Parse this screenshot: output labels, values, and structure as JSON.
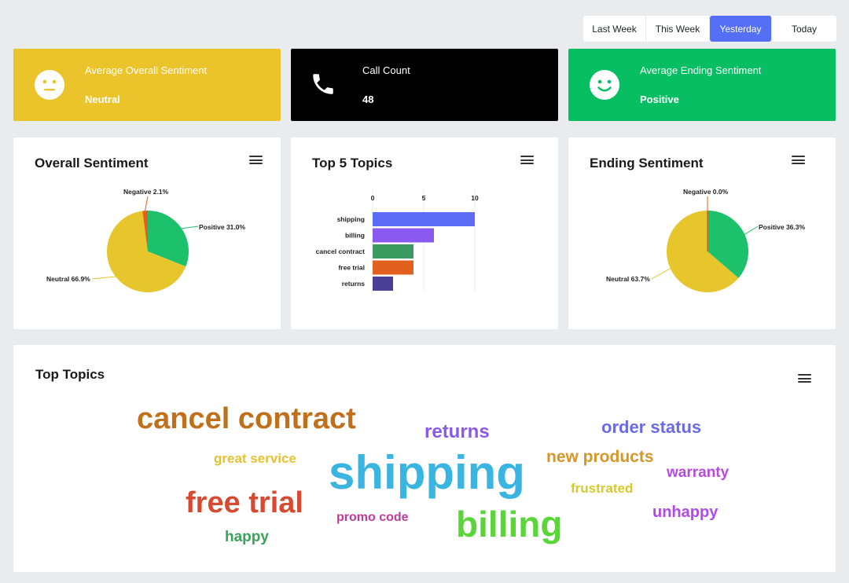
{
  "filters": [
    {
      "label": "Last Week",
      "active": false
    },
    {
      "label": "This Week",
      "active": false
    },
    {
      "label": "Yesterday",
      "active": true
    },
    {
      "label": "Today",
      "active": false
    }
  ],
  "kpis": {
    "overall": {
      "title": "Average Overall Sentiment",
      "value": "Neutral",
      "color": "#ebc42b",
      "icon": "neutral-face-icon"
    },
    "calls": {
      "title": "Call Count",
      "value": "48",
      "color": "#000000",
      "icon": "phone-icon"
    },
    "ending": {
      "title": "Average Ending Sentiment",
      "value": "Positive",
      "color": "#07bf62",
      "icon": "smiley-face-icon"
    }
  },
  "overall_sentiment": {
    "title": "Overall Sentiment",
    "labels": {
      "negative": "Negative 2.1%",
      "positive": "Positive 31.0%",
      "neutral": "Neutral 66.9%"
    }
  },
  "top5": {
    "title": "Top 5 Topics",
    "ticks": [
      "0",
      "5",
      "10"
    ]
  },
  "ending_sentiment": {
    "title": "Ending Sentiment",
    "labels": {
      "negative": "Negative 0.0%",
      "positive": "Positive 36.3%",
      "neutral": "Neutral 63.7%"
    }
  },
  "topics_cloud": {
    "title": "Top Topics",
    "words": [
      {
        "text": "cancel contract",
        "color": "#c0701a"
      },
      {
        "text": "returns",
        "color": "#8a5ae6"
      },
      {
        "text": "order status",
        "color": "#6a6ae6"
      },
      {
        "text": "great service",
        "color": "#e6c230"
      },
      {
        "text": "new products",
        "color": "#d6962a"
      },
      {
        "text": "shipping",
        "color": "#3ab4e0"
      },
      {
        "text": "warranty",
        "color": "#b84ae0"
      },
      {
        "text": "frustrated",
        "color": "#d6ca2a"
      },
      {
        "text": "free trial",
        "color": "#d84a30"
      },
      {
        "text": "promo code",
        "color": "#c03a9a"
      },
      {
        "text": "billing",
        "color": "#5ad63a"
      },
      {
        "text": "unhappy",
        "color": "#b04ae6"
      },
      {
        "text": "happy",
        "color": "#3aa25a"
      }
    ]
  },
  "chart_data": [
    {
      "type": "pie",
      "title": "Overall Sentiment",
      "categories": [
        "Positive",
        "Neutral",
        "Negative"
      ],
      "values": [
        31.0,
        66.9,
        2.1
      ],
      "colors": [
        "#1ec16b",
        "#e6c62c",
        "#e0601e"
      ]
    },
    {
      "type": "bar",
      "title": "Top 5 Topics",
      "orientation": "horizontal",
      "categories": [
        "shipping",
        "billing",
        "cancel contract",
        "free trial",
        "returns"
      ],
      "values": [
        10,
        6,
        4,
        4,
        2
      ],
      "colors": [
        "#5c6cf4",
        "#8a5af0",
        "#3b9a5f",
        "#e0601e",
        "#4a3f94"
      ],
      "xlim": [
        0,
        10
      ]
    },
    {
      "type": "pie",
      "title": "Ending Sentiment",
      "categories": [
        "Positive",
        "Neutral",
        "Negative"
      ],
      "values": [
        36.3,
        63.7,
        0.0
      ],
      "colors": [
        "#1ec16b",
        "#e6c62c",
        "#e0601e"
      ]
    }
  ]
}
